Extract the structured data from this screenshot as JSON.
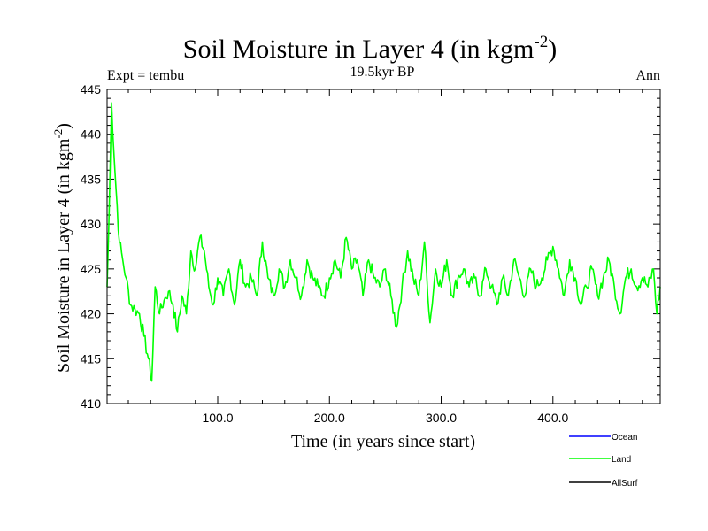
{
  "chart_data": {
    "type": "line",
    "title": "Soil Moisture in Layer 4 (in kgm",
    "title_superscript": "-2",
    "title_close": ")",
    "subtitle": "19.5kyr BP",
    "left_label": "Expt = tembu",
    "right_label": "Ann",
    "xlabel": "Time (in years since start)",
    "ylabel": "Soil Moisture in Layer 4 (in kgm",
    "ylabel_superscript": "-2",
    "ylabel_close": ")",
    "xlim": [
      1,
      496
    ],
    "ylim": [
      410,
      445
    ],
    "x_ticks": [
      100,
      200,
      300,
      400
    ],
    "x_tick_labels": [
      "100.0",
      "200.0",
      "300.0",
      "400.0"
    ],
    "y_ticks": [
      410,
      415,
      420,
      425,
      430,
      435,
      440,
      445
    ],
    "y_tick_labels": [
      "410",
      "415",
      "420",
      "425",
      "430",
      "435",
      "440",
      "445"
    ],
    "legend": [
      {
        "name": "Ocean",
        "color": "#0000ff"
      },
      {
        "name": "Land",
        "color": "#00ff00"
      },
      {
        "name": "AllSurf",
        "color": "#000000"
      }
    ],
    "series": [
      {
        "name": "Land",
        "color": "#00ff00",
        "x": [
          1,
          3,
          5,
          8,
          12,
          15,
          18,
          22,
          26,
          30,
          34,
          38,
          41,
          44,
          48,
          52,
          56,
          60,
          64,
          68,
          72,
          76,
          80,
          84,
          88,
          92,
          96,
          100,
          105,
          110,
          115,
          120,
          125,
          130,
          135,
          140,
          145,
          150,
          155,
          160,
          165,
          170,
          175,
          180,
          185,
          190,
          195,
          200,
          205,
          210,
          215,
          220,
          225,
          230,
          235,
          240,
          245,
          250,
          255,
          260,
          265,
          270,
          275,
          280,
          285,
          290,
          295,
          300,
          305,
          310,
          315,
          320,
          325,
          330,
          335,
          340,
          345,
          350,
          355,
          360,
          365,
          370,
          375,
          380,
          385,
          390,
          395,
          400,
          405,
          410,
          415,
          420,
          425,
          430,
          435,
          440,
          445,
          450,
          455,
          460,
          465,
          470,
          475,
          480,
          485,
          490,
          493,
          496
        ],
        "values": [
          423,
          432,
          443.5,
          436,
          428,
          426,
          424,
          421,
          420.5,
          420,
          417.5,
          415,
          412.5,
          423,
          420,
          421.5,
          422.5,
          421,
          418,
          422,
          420,
          427,
          425,
          428.5,
          427,
          423,
          421,
          424,
          422,
          425,
          421,
          426,
          423,
          424,
          422,
          428,
          424,
          422,
          425,
          423,
          426,
          424,
          422,
          426,
          424,
          423,
          422,
          424,
          426,
          424,
          428.5,
          425,
          426,
          422,
          426,
          424,
          423,
          425,
          422,
          418.5,
          423,
          427,
          424,
          422,
          428,
          419,
          425,
          423,
          426,
          422,
          424,
          425,
          423,
          424,
          422,
          425,
          423,
          421,
          424,
          422,
          426,
          424,
          422,
          425,
          423,
          424,
          426,
          427.5,
          425,
          422,
          426,
          424,
          421,
          423,
          425,
          422,
          424,
          426,
          423,
          420,
          424,
          425,
          423,
          424,
          423,
          425,
          420,
          423
        ]
      }
    ]
  }
}
